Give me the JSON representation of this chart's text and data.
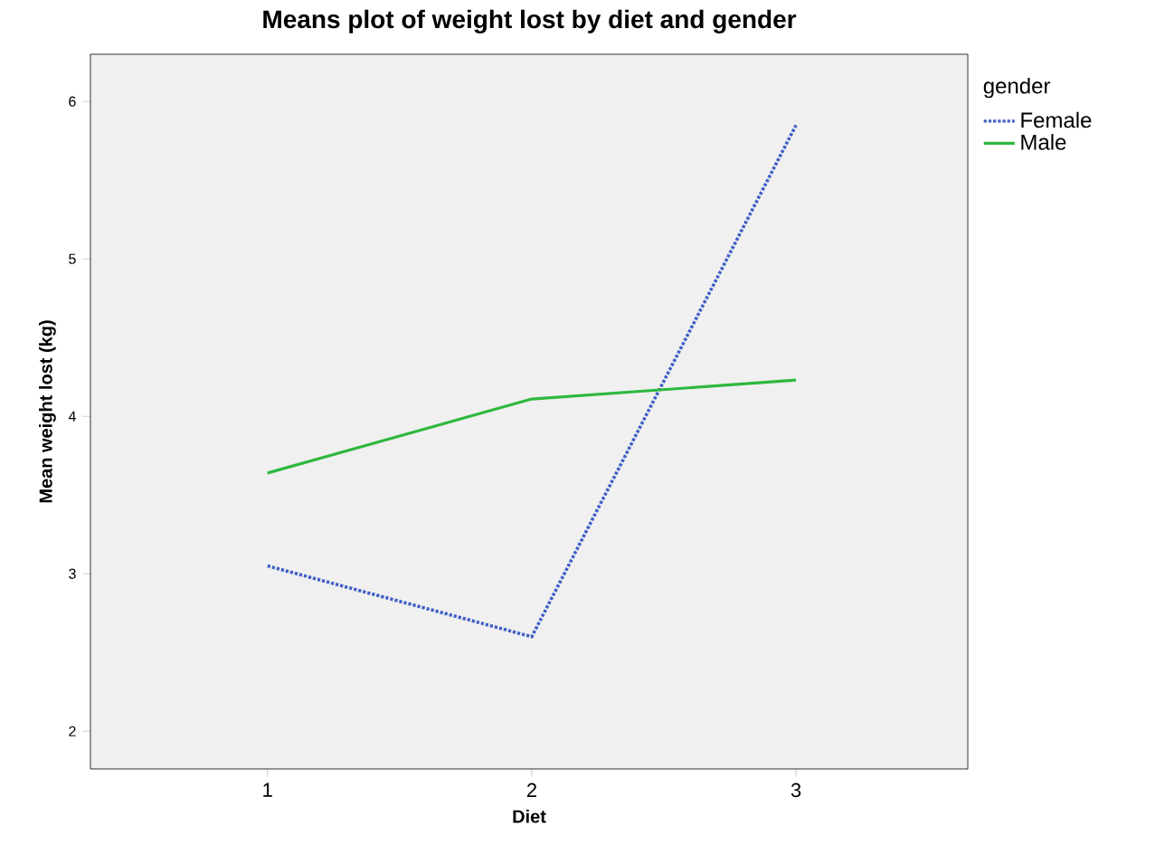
{
  "chart_data": {
    "type": "line",
    "title": "Means plot of weight lost by diet and gender",
    "xlabel": "Diet",
    "ylabel": "Mean weight lost (kg)",
    "legend_title": "gender",
    "categories": [
      "1",
      "2",
      "3"
    ],
    "series": [
      {
        "name": "Female",
        "color": "#3f5fc8",
        "values": [
          3.05,
          2.6,
          5.85
        ],
        "line_style": "dotted"
      },
      {
        "name": "Male",
        "color": "#2eb83e",
        "values": [
          3.64,
          4.11,
          4.23
        ],
        "line_style": "solid"
      }
    ],
    "ylim": [
      1.76,
      6.3
    ],
    "yticks": [
      2,
      3,
      4,
      5,
      6
    ],
    "legend": "top right",
    "marker": "none"
  }
}
